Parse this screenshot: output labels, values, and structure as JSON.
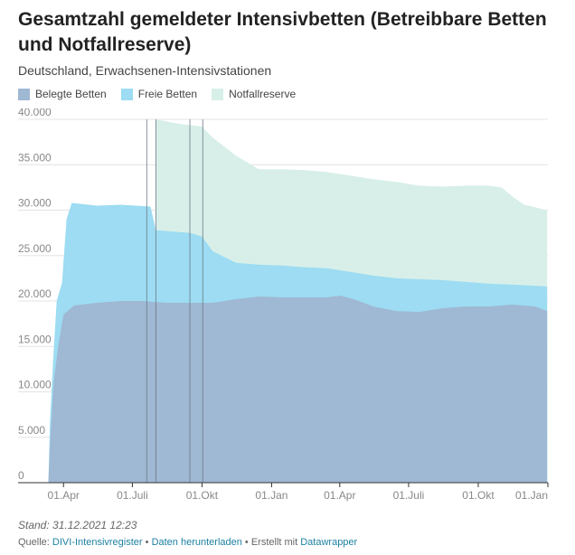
{
  "header": {
    "title": "Gesamtzahl gemeldeter Intensivbetten (Betreibbare Betten und Notfallreserve)",
    "subtitle": "Deutschland, Erwachsenen-Intensivstationen"
  },
  "footer": {
    "stand": "Stand: 31.12.2021 12:23",
    "source_prefix": "Quelle:",
    "source_link": "DIVI-Intensivregister",
    "sep1": "•",
    "download_link": "Daten herunterladen",
    "sep2": "• Erstellt mit",
    "made_with_link": "Datawrapper"
  },
  "colors": {
    "belegt": "#9fb8d3",
    "frei": "#9ddcf2",
    "reserve": "#d8efe9",
    "grid": "#e3e3e3",
    "vline": "#6c7a89",
    "link": "#1d81a2"
  },
  "chart_data": {
    "type": "area",
    "stacked": true,
    "x_unit": "date",
    "x_range": [
      "2020-02-01",
      "2022-01-01"
    ],
    "ylim": [
      0,
      40000
    ],
    "yticks": [
      {
        "value": 0,
        "label": "0"
      },
      {
        "value": 5000,
        "label": "5.000"
      },
      {
        "value": 10000,
        "label": "10.000"
      },
      {
        "value": 15000,
        "label": "15.000"
      },
      {
        "value": 20000,
        "label": "20.000"
      },
      {
        "value": 25000,
        "label": "25.000"
      },
      {
        "value": 30000,
        "label": "30.000"
      },
      {
        "value": 35000,
        "label": "35.000"
      },
      {
        "value": 40000,
        "label": "40.000"
      }
    ],
    "xticks": [
      {
        "date": "2020-04-01",
        "label": "01.Apr"
      },
      {
        "date": "2020-07-01",
        "label": "01.Juli"
      },
      {
        "date": "2020-10-01",
        "label": "01.Okt"
      },
      {
        "date": "2021-01-01",
        "label": "01.Jan"
      },
      {
        "date": "2021-04-01",
        "label": "01.Apr"
      },
      {
        "date": "2021-07-01",
        "label": "01.Juli"
      },
      {
        "date": "2021-10-01",
        "label": "01.Okt"
      },
      {
        "date": "2022-01-01",
        "label": "01.Jan"
      }
    ],
    "grid": true,
    "legend_placement": "top-left",
    "reference_dates": [
      "2020-07-20",
      "2020-08-01",
      "2020-09-15",
      "2020-10-02"
    ],
    "series": [
      {
        "name": "Belegte Betten",
        "color": "#9fb8d3",
        "points": [
          [
            "2020-03-12",
            0
          ],
          [
            "2020-03-14",
            4000
          ],
          [
            "2020-03-19",
            11000
          ],
          [
            "2020-03-25",
            15000
          ],
          [
            "2020-04-01",
            18500
          ],
          [
            "2020-04-15",
            19500
          ],
          [
            "2020-05-15",
            19800
          ],
          [
            "2020-06-15",
            20000
          ],
          [
            "2020-07-15",
            20000
          ],
          [
            "2020-08-15",
            19800
          ],
          [
            "2020-09-15",
            19800
          ],
          [
            "2020-10-15",
            19800
          ],
          [
            "2020-11-15",
            20200
          ],
          [
            "2020-12-15",
            20500
          ],
          [
            "2021-01-15",
            20400
          ],
          [
            "2021-02-15",
            20400
          ],
          [
            "2021-03-15",
            20400
          ],
          [
            "2021-04-01",
            20600
          ],
          [
            "2021-04-20",
            20200
          ],
          [
            "2021-05-15",
            19400
          ],
          [
            "2021-06-15",
            18900
          ],
          [
            "2021-07-15",
            18800
          ],
          [
            "2021-08-15",
            19200
          ],
          [
            "2021-09-15",
            19400
          ],
          [
            "2021-10-15",
            19400
          ],
          [
            "2021-11-15",
            19600
          ],
          [
            "2021-12-15",
            19400
          ],
          [
            "2021-12-31",
            18900
          ]
        ]
      },
      {
        "name": "Freie Betten",
        "color": "#9ddcf2",
        "points": [
          [
            "2020-03-12",
            0
          ],
          [
            "2020-03-14",
            6500
          ],
          [
            "2020-03-18",
            13000
          ],
          [
            "2020-03-23",
            20000
          ],
          [
            "2020-03-30",
            22000
          ],
          [
            "2020-04-05",
            29000
          ],
          [
            "2020-04-12",
            30800
          ],
          [
            "2020-05-15",
            30500
          ],
          [
            "2020-06-15",
            30600
          ],
          [
            "2020-07-25",
            30400
          ],
          [
            "2020-08-01",
            27800
          ],
          [
            "2020-09-15",
            27500
          ],
          [
            "2020-10-01",
            27100
          ],
          [
            "2020-10-15",
            25500
          ],
          [
            "2020-11-15",
            24200
          ],
          [
            "2020-12-15",
            24000
          ],
          [
            "2021-01-15",
            23900
          ],
          [
            "2021-02-15",
            23700
          ],
          [
            "2021-03-15",
            23600
          ],
          [
            "2021-04-15",
            23200
          ],
          [
            "2021-05-15",
            22800
          ],
          [
            "2021-06-15",
            22500
          ],
          [
            "2021-07-15",
            22400
          ],
          [
            "2021-08-15",
            22300
          ],
          [
            "2021-09-15",
            22100
          ],
          [
            "2021-10-15",
            21900
          ],
          [
            "2021-11-15",
            21800
          ],
          [
            "2021-12-31",
            21600
          ]
        ]
      },
      {
        "name": "Notfallreserve",
        "color": "#d8efe9",
        "points": [
          [
            "2020-08-01",
            30200
          ],
          [
            "2020-08-01",
            40000
          ],
          [
            "2020-09-01",
            39500
          ],
          [
            "2020-10-01",
            39200
          ],
          [
            "2020-10-15",
            38000
          ],
          [
            "2020-11-15",
            36000
          ],
          [
            "2020-12-15",
            34500
          ],
          [
            "2021-01-15",
            34500
          ],
          [
            "2021-02-15",
            34400
          ],
          [
            "2021-03-15",
            34200
          ],
          [
            "2021-04-15",
            33800
          ],
          [
            "2021-05-15",
            33400
          ],
          [
            "2021-06-15",
            33100
          ],
          [
            "2021-07-15",
            32700
          ],
          [
            "2021-08-15",
            32600
          ],
          [
            "2021-09-15",
            32700
          ],
          [
            "2021-10-15",
            32700
          ],
          [
            "2021-11-01",
            32500
          ],
          [
            "2021-11-15",
            31500
          ],
          [
            "2021-12-01",
            30600
          ],
          [
            "2021-12-31",
            30000
          ]
        ]
      }
    ]
  }
}
